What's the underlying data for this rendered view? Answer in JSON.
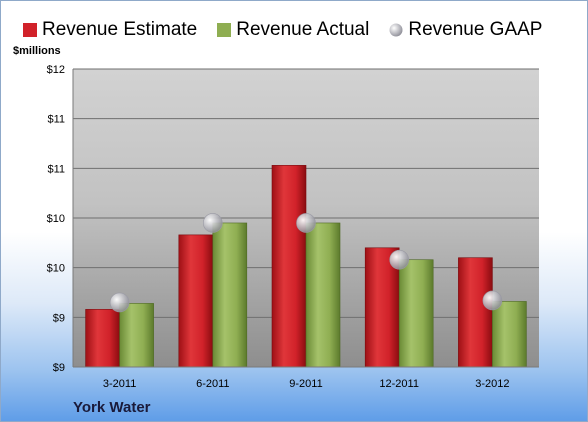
{
  "legend": {
    "estimate": "Revenue Estimate",
    "actual": "Revenue Actual",
    "gaap": "Revenue GAAP"
  },
  "unit_label": "$millions",
  "brand": "York Water",
  "colors": {
    "estimate": "#d1222a",
    "actual": "#8fae52",
    "gaap": "#b9b9c2",
    "plot_top": "#cfcfcf",
    "plot_bottom": "#9a9a9a"
  },
  "chart_data": {
    "type": "bar",
    "categories": [
      "3-2011",
      "6-2011",
      "9-2011",
      "12-2011",
      "3-2012"
    ],
    "series": [
      {
        "name": "Revenue Estimate",
        "kind": "bar",
        "values": [
          9.58,
          10.33,
          11.03,
          10.2,
          10.1
        ]
      },
      {
        "name": "Revenue Actual",
        "kind": "bar",
        "values": [
          9.64,
          10.45,
          10.45,
          10.08,
          9.66
        ]
      },
      {
        "name": "Revenue GAAP",
        "kind": "point",
        "values": [
          9.65,
          10.45,
          10.45,
          10.08,
          9.67
        ]
      }
    ],
    "ylim": [
      9,
      12
    ],
    "ytick_labels": [
      "$9",
      "$9",
      "$10",
      "$10",
      "$11",
      "$11",
      "$12"
    ],
    "grid": true
  }
}
